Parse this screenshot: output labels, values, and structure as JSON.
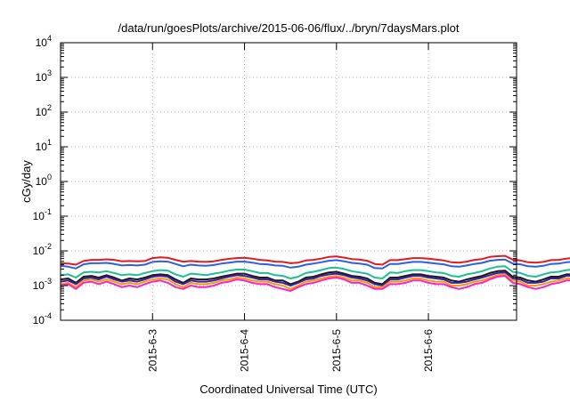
{
  "chart_data": {
    "type": "line",
    "title": "/data/run/goesPlots/archive/2015-06-06/flux/../bryn/7daysMars.plot",
    "xlabel": "Coordinated Universal Time (UTC)",
    "ylabel": "cGy/day",
    "yscale": "log",
    "ylim": [
      0.0001,
      10000
    ],
    "xlim": [
      "2015-06-02T00:00",
      "2015-06-06T23:00"
    ],
    "grid": true,
    "x_ticks": [
      "2015-6-3",
      "2015-6-4",
      "2015-6-5",
      "2015-6-6"
    ],
    "y_ticks": [
      {
        "base": "10",
        "exp": "-4",
        "value": 0.0001
      },
      {
        "base": "10",
        "exp": "-3",
        "value": 0.001
      },
      {
        "base": "10",
        "exp": "-2",
        "value": 0.01
      },
      {
        "base": "10",
        "exp": "-1",
        "value": 0.1
      },
      {
        "base": "10",
        "exp": "0",
        "value": 1
      },
      {
        "base": "10",
        "exp": "1",
        "value": 10
      },
      {
        "base": "10",
        "exp": "2",
        "value": 100
      },
      {
        "base": "10",
        "exp": "3",
        "value": 1000
      },
      {
        "base": "10",
        "exp": "4",
        "value": 10000
      }
    ],
    "x_step_hours": 2.0,
    "series": [
      {
        "color": "#e41a1c",
        "values": [
          0.0044,
          0.0043,
          0.004,
          0.0051,
          0.0055,
          0.0055,
          0.0057,
          0.0055,
          0.005,
          0.0051,
          0.005,
          0.0051,
          0.0062,
          0.0065,
          0.0063,
          0.0055,
          0.0049,
          0.0051,
          0.0049,
          0.0048,
          0.005,
          0.0055,
          0.0059,
          0.0062,
          0.0063,
          0.006,
          0.0055,
          0.0053,
          0.0049,
          0.0048,
          0.0044,
          0.0046,
          0.0053,
          0.0055,
          0.006,
          0.0067,
          0.0069,
          0.0064,
          0.0058,
          0.0056,
          0.0052,
          0.0042,
          0.004,
          0.0054,
          0.0054,
          0.0058,
          0.0062,
          0.0062,
          0.006,
          0.0056,
          0.0053,
          0.0047,
          0.0046,
          0.0049,
          0.0055,
          0.0058,
          0.0067,
          0.007,
          0.0072,
          0.0056,
          0.0053,
          0.0047,
          0.0046,
          0.0048,
          0.0054,
          0.0055,
          0.006,
          0.0063
        ]
      },
      {
        "color": "#2b5fe8",
        "values": [
          0.0037,
          0.0035,
          0.0031,
          0.0041,
          0.0044,
          0.0044,
          0.0045,
          0.0042,
          0.0038,
          0.0039,
          0.0038,
          0.004,
          0.0048,
          0.005,
          0.0049,
          0.0042,
          0.0036,
          0.004,
          0.0038,
          0.0037,
          0.0039,
          0.0043,
          0.0046,
          0.0049,
          0.0049,
          0.0046,
          0.0042,
          0.0041,
          0.0038,
          0.0037,
          0.0033,
          0.0035,
          0.004,
          0.0043,
          0.0047,
          0.0052,
          0.0054,
          0.005,
          0.0045,
          0.0043,
          0.004,
          0.0032,
          0.0031,
          0.0042,
          0.0042,
          0.0045,
          0.0048,
          0.0048,
          0.0046,
          0.0043,
          0.0041,
          0.0036,
          0.0035,
          0.0038,
          0.0042,
          0.0045,
          0.0052,
          0.0055,
          0.0056,
          0.0043,
          0.0041,
          0.0036,
          0.0035,
          0.0037,
          0.0042,
          0.0043,
          0.0047,
          0.0049
        ]
      },
      {
        "color": "#1dbf94",
        "values": [
          0.002,
          0.0021,
          0.0017,
          0.0024,
          0.0025,
          0.0024,
          0.0026,
          0.0023,
          0.002,
          0.0021,
          0.002,
          0.0023,
          0.0026,
          0.0028,
          0.0027,
          0.0021,
          0.0018,
          0.0022,
          0.0021,
          0.002,
          0.0022,
          0.0024,
          0.0027,
          0.0029,
          0.0029,
          0.0026,
          0.0023,
          0.0023,
          0.002,
          0.0019,
          0.0016,
          0.0018,
          0.0023,
          0.0025,
          0.0028,
          0.0032,
          0.0033,
          0.003,
          0.0026,
          0.0024,
          0.0022,
          0.0017,
          0.0016,
          0.0024,
          0.0023,
          0.0026,
          0.0028,
          0.0028,
          0.0026,
          0.0024,
          0.0023,
          0.0019,
          0.0018,
          0.0021,
          0.0023,
          0.0026,
          0.0031,
          0.0035,
          0.0036,
          0.0025,
          0.0023,
          0.0019,
          0.0018,
          0.0021,
          0.0024,
          0.0025,
          0.0028,
          0.0029
        ]
      },
      {
        "color": "#1a1a1a",
        "values": [
          0.0015,
          0.0016,
          0.0012,
          0.0018,
          0.0019,
          0.0017,
          0.002,
          0.0017,
          0.0014,
          0.0016,
          0.0015,
          0.0017,
          0.002,
          0.0021,
          0.002,
          0.0015,
          0.0012,
          0.0016,
          0.0015,
          0.0015,
          0.0016,
          0.0018,
          0.002,
          0.0022,
          0.0022,
          0.0019,
          0.0017,
          0.0017,
          0.0014,
          0.0014,
          0.0011,
          0.0013,
          0.0017,
          0.0018,
          0.0021,
          0.0024,
          0.0025,
          0.0022,
          0.0019,
          0.0018,
          0.0016,
          0.0012,
          0.0011,
          0.0017,
          0.0017,
          0.0019,
          0.0021,
          0.0021,
          0.0019,
          0.0018,
          0.0017,
          0.0014,
          0.0013,
          0.0015,
          0.0017,
          0.0019,
          0.0023,
          0.0026,
          0.0027,
          0.0018,
          0.0017,
          0.0014,
          0.0013,
          0.0015,
          0.0018,
          0.0018,
          0.0021,
          0.0021
        ]
      },
      {
        "color": "#3b1fa8",
        "values": [
          0.0013,
          0.0014,
          0.0011,
          0.0016,
          0.0017,
          0.0015,
          0.0018,
          0.0015,
          0.0013,
          0.0014,
          0.0013,
          0.0015,
          0.0018,
          0.0019,
          0.0018,
          0.0013,
          0.0011,
          0.0014,
          0.0013,
          0.0013,
          0.0014,
          0.0016,
          0.0018,
          0.002,
          0.0019,
          0.0017,
          0.0015,
          0.0015,
          0.0013,
          0.0012,
          0.001,
          0.0012,
          0.0015,
          0.0016,
          0.0019,
          0.0021,
          0.0022,
          0.002,
          0.0017,
          0.0016,
          0.0014,
          0.0011,
          0.001,
          0.0015,
          0.0015,
          0.0017,
          0.0019,
          0.0019,
          0.0017,
          0.0016,
          0.0015,
          0.0012,
          0.0012,
          0.0013,
          0.0015,
          0.0017,
          0.002,
          0.0023,
          0.0024,
          0.0016,
          0.0015,
          0.0012,
          0.0012,
          0.0013,
          0.0016,
          0.0016,
          0.0019,
          0.0019
        ]
      },
      {
        "color": "#f0a000",
        "values": [
          0.0011,
          0.0012,
          0.0009,
          0.0014,
          0.0015,
          0.0013,
          0.0015,
          0.0013,
          0.0011,
          0.0012,
          0.0011,
          0.0013,
          0.0015,
          0.0016,
          0.0015,
          0.0011,
          0.0009,
          0.0012,
          0.0011,
          0.0011,
          0.0012,
          0.0014,
          0.0015,
          0.0017,
          0.0016,
          0.0014,
          0.0013,
          0.0013,
          0.0011,
          0.001,
          0.0008,
          0.001,
          0.0013,
          0.0014,
          0.0016,
          0.0018,
          0.0019,
          0.0017,
          0.0014,
          0.0014,
          0.0012,
          0.0009,
          0.0009,
          0.0013,
          0.0013,
          0.0014,
          0.0016,
          0.0016,
          0.0014,
          0.0013,
          0.0013,
          0.001,
          0.001,
          0.0011,
          0.0013,
          0.0014,
          0.0017,
          0.002,
          0.0021,
          0.0014,
          0.0013,
          0.001,
          0.001,
          0.0011,
          0.0013,
          0.0014,
          0.0016,
          0.0016
        ]
      },
      {
        "color": "#ff1fd0",
        "values": [
          0.001,
          0.0011,
          0.0008,
          0.0012,
          0.0013,
          0.0011,
          0.0013,
          0.0011,
          0.0009,
          0.001,
          0.0009,
          0.0011,
          0.0013,
          0.0014,
          0.0012,
          0.0009,
          0.0008,
          0.001,
          0.0009,
          0.0009,
          0.001,
          0.0012,
          0.0013,
          0.0015,
          0.0014,
          0.0012,
          0.0011,
          0.0011,
          0.0009,
          0.0008,
          0.0007,
          0.0009,
          0.0011,
          0.0012,
          0.0014,
          0.0016,
          0.0017,
          0.0015,
          0.0012,
          0.0012,
          0.001,
          0.0008,
          0.0008,
          0.0011,
          0.0011,
          0.0012,
          0.0014,
          0.0014,
          0.0012,
          0.0011,
          0.0011,
          0.0009,
          0.0008,
          0.0009,
          0.0011,
          0.0012,
          0.0015,
          0.0018,
          0.0019,
          0.0012,
          0.0011,
          0.0009,
          0.0008,
          0.0009,
          0.0011,
          0.0012,
          0.0014,
          0.0014
        ]
      }
    ]
  }
}
